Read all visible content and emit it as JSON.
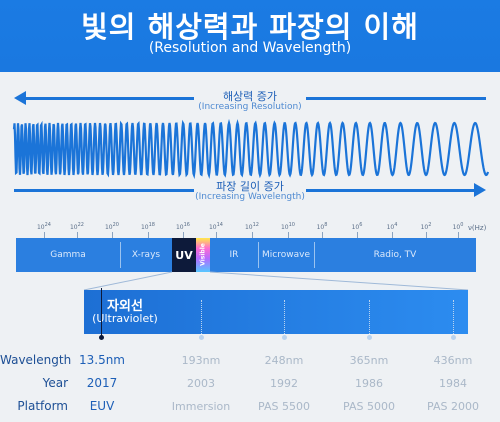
{
  "header": {
    "title": "빛의 해상력과 파장의 이해",
    "subtitle": "(Resolution and Wavelength)"
  },
  "resolution_arrow": {
    "label_ko": "해상력 증가",
    "label_en": "(Increasing Resolution)"
  },
  "wavelength_arrow": {
    "label_ko": "파장 길이 증가",
    "label_en": "(Increasing Wavelength)"
  },
  "frequency_axis": {
    "ticks": [
      {
        "base": "10",
        "exp": "24"
      },
      {
        "base": "10",
        "exp": "22"
      },
      {
        "base": "10",
        "exp": "20"
      },
      {
        "base": "10",
        "exp": "18"
      },
      {
        "base": "10",
        "exp": "16"
      },
      {
        "base": "10",
        "exp": "14"
      },
      {
        "base": "10",
        "exp": "12"
      },
      {
        "base": "10",
        "exp": "10"
      },
      {
        "base": "10",
        "exp": "8"
      },
      {
        "base": "10",
        "exp": "6"
      },
      {
        "base": "10",
        "exp": "4"
      },
      {
        "base": "10",
        "exp": "2"
      },
      {
        "base": "10",
        "exp": "0"
      }
    ],
    "unit": "ν(Hz)"
  },
  "spectrum_segments": {
    "gamma": "Gamma",
    "xrays": "X-rays",
    "uv": "UV",
    "visible": "Visible",
    "ir": "IR",
    "microwave": "Microwave",
    "radio": "Radio, TV"
  },
  "uv_zoom": {
    "label_ko": "자외선",
    "label_en": "(Ultraviolet)"
  },
  "table": {
    "row_labels": {
      "wavelength": "Wavelength",
      "year": "Year",
      "platform": "Platform"
    },
    "columns": [
      {
        "wavelength": "13.5nm",
        "year": "2017",
        "platform": "EUV",
        "highlight": true
      },
      {
        "wavelength": "193nm",
        "year": "2003",
        "platform": "Immersion",
        "highlight": false
      },
      {
        "wavelength": "248nm",
        "year": "1992",
        "platform": "PAS 5500",
        "highlight": false
      },
      {
        "wavelength": "365nm",
        "year": "1986",
        "platform": "PAS 5000",
        "highlight": false
      },
      {
        "wavelength": "436nm",
        "year": "1984",
        "platform": "PAS 2000",
        "highlight": false
      }
    ]
  },
  "colors": {
    "primary_blue": "#1b7be3",
    "arrow_blue": "#1b74d8",
    "uv_dark": "#0d1a3a",
    "highlight_text": "#1d5fb7",
    "muted_text": "#aab8c8"
  }
}
